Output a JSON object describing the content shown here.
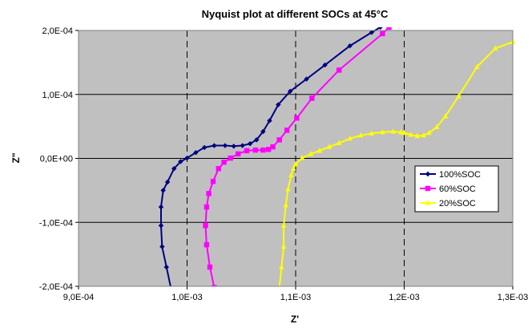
{
  "chart_data": {
    "type": "scatter",
    "title": "Nyquist plot at different SOCs at 45°C",
    "xlabel": "Z'",
    "ylabel": "Z\"",
    "xlim": [
      0.0009,
      0.0013
    ],
    "ylim": [
      -0.0002,
      0.0002
    ],
    "x_ticks": [
      0.0009,
      0.001,
      0.0011,
      0.0012,
      0.0013
    ],
    "x_tick_labels": [
      "9,0E-04",
      "1,0E-03",
      "1,1E-03",
      "1,2E-03",
      "1,3E-03"
    ],
    "y_ticks": [
      -0.0002,
      -0.0001,
      0.0,
      0.0001,
      0.0002
    ],
    "y_tick_labels": [
      "-2,0E-04",
      "-1,0E-04",
      "0,0E+00",
      "1,0E-04",
      "2,0E-04"
    ],
    "grid": {
      "horizontal": "solid",
      "vertical": "dashed"
    },
    "plot_background": "#c0c0c0",
    "legend_position": "right",
    "series": [
      {
        "name": "100%SOC",
        "color": "#000080",
        "marker": "diamond",
        "x": [
          0.000985,
          0.000981,
          0.000977,
          0.000976,
          0.000976,
          0.000978,
          0.000982,
          0.000988,
          0.000994,
          0.001,
          0.001008,
          0.001016,
          0.001025,
          0.001035,
          0.001043,
          0.001051,
          0.001058,
          0.001064,
          0.00107,
          0.001076,
          0.001084,
          0.001095,
          0.00111,
          0.001127,
          0.00115,
          0.00117,
          0.001178
        ],
        "y": [
          -0.000202,
          -0.00017,
          -0.000138,
          -0.000105,
          -7.6e-05,
          -5e-05,
          -3.7e-05,
          -1.6e-05,
          -5e-06,
          5e-07,
          9e-06,
          1.7e-05,
          2e-05,
          2e-05,
          1.9e-05,
          2e-05,
          2.3e-05,
          2.9e-05,
          4.2e-05,
          5.9e-05,
          8.4e-05,
          0.000105,
          0.000124,
          0.000146,
          0.000176,
          0.000197,
          0.000205
        ]
      },
      {
        "name": "60%SOC",
        "color": "#ff00ff",
        "marker": "square",
        "x": [
          0.001025,
          0.001021,
          0.001018,
          0.001017,
          0.001018,
          0.00102,
          0.001024,
          0.001029,
          0.001034,
          0.00104,
          0.001047,
          0.001055,
          0.001063,
          0.00107,
          0.001075,
          0.001079,
          0.001085,
          0.001092,
          0.001101,
          0.001115,
          0.00114,
          0.00118,
          0.001186
        ],
        "y": [
          -0.000202,
          -0.00017,
          -0.000135,
          -0.000105,
          -7.6e-05,
          -5.5e-05,
          -3.6e-05,
          -1.6e-05,
          -6e-06,
          5e-07,
          7e-06,
          1.2e-05,
          1.3e-05,
          1.3e-05,
          1.4e-05,
          1.8e-05,
          2.9e-05,
          4.4e-05,
          6.3e-05,
          9.4e-05,
          0.000138,
          0.000195,
          0.000205
        ]
      },
      {
        "name": "20%SOC",
        "color": "#ffff00",
        "marker": "triangle",
        "x": [
          0.001085,
          0.001087,
          0.001089,
          0.001089,
          0.001091,
          0.001093,
          0.001096,
          0.001098,
          0.0011,
          0.001106,
          0.001114,
          0.001122,
          0.001131,
          0.00114,
          0.00115,
          0.00116,
          0.00117,
          0.00118,
          0.00119,
          0.001197,
          0.0012,
          0.001206,
          0.001212,
          0.001218,
          0.001223,
          0.00123,
          0.001238,
          0.00125,
          0.001267,
          0.001284,
          0.0013
        ],
        "y": [
          -0.000202,
          -0.00017,
          -0.000138,
          -0.000105,
          -7.3e-05,
          -4.8e-05,
          -2.6e-05,
          -1.6e-05,
          -9e-06,
          5e-07,
          7e-06,
          1.2e-05,
          1.8e-05,
          2.4e-05,
          3.1e-05,
          3.6e-05,
          3.9e-05,
          4.1e-05,
          4.2e-05,
          4.1e-05,
          4e-05,
          3.7e-05,
          3.5e-05,
          3.6e-05,
          4e-05,
          4.9e-05,
          6.6e-05,
          9.7e-05,
          0.000143,
          0.000172,
          0.000182
        ]
      }
    ]
  }
}
